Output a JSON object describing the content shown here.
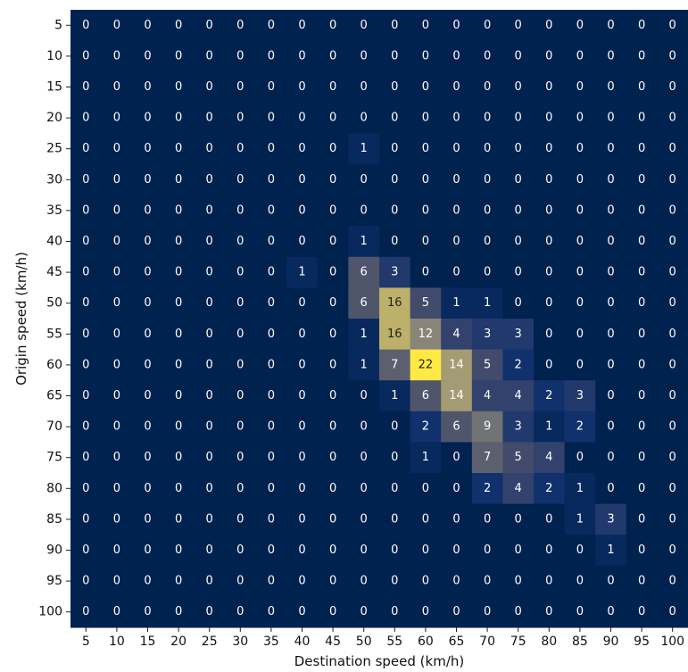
{
  "chart_data": {
    "type": "heatmap",
    "title": "",
    "xlabel": "Destination speed (km/h)",
    "ylabel": "Origin speed (km/h)",
    "x_categories": [
      "5",
      "10",
      "15",
      "20",
      "25",
      "30",
      "35",
      "40",
      "45",
      "50",
      "55",
      "60",
      "65",
      "70",
      "75",
      "80",
      "85",
      "90",
      "95",
      "100"
    ],
    "y_categories": [
      "5",
      "10",
      "15",
      "20",
      "25",
      "30",
      "35",
      "40",
      "45",
      "50",
      "55",
      "60",
      "65",
      "70",
      "75",
      "80",
      "85",
      "90",
      "95",
      "100"
    ],
    "values": [
      [
        0,
        0,
        0,
        0,
        0,
        0,
        0,
        0,
        0,
        0,
        0,
        0,
        0,
        0,
        0,
        0,
        0,
        0,
        0,
        0
      ],
      [
        0,
        0,
        0,
        0,
        0,
        0,
        0,
        0,
        0,
        0,
        0,
        0,
        0,
        0,
        0,
        0,
        0,
        0,
        0,
        0
      ],
      [
        0,
        0,
        0,
        0,
        0,
        0,
        0,
        0,
        0,
        0,
        0,
        0,
        0,
        0,
        0,
        0,
        0,
        0,
        0,
        0
      ],
      [
        0,
        0,
        0,
        0,
        0,
        0,
        0,
        0,
        0,
        0,
        0,
        0,
        0,
        0,
        0,
        0,
        0,
        0,
        0,
        0
      ],
      [
        0,
        0,
        0,
        0,
        0,
        0,
        0,
        0,
        0,
        1,
        0,
        0,
        0,
        0,
        0,
        0,
        0,
        0,
        0,
        0
      ],
      [
        0,
        0,
        0,
        0,
        0,
        0,
        0,
        0,
        0,
        0,
        0,
        0,
        0,
        0,
        0,
        0,
        0,
        0,
        0,
        0
      ],
      [
        0,
        0,
        0,
        0,
        0,
        0,
        0,
        0,
        0,
        0,
        0,
        0,
        0,
        0,
        0,
        0,
        0,
        0,
        0,
        0
      ],
      [
        0,
        0,
        0,
        0,
        0,
        0,
        0,
        0,
        0,
        1,
        0,
        0,
        0,
        0,
        0,
        0,
        0,
        0,
        0,
        0
      ],
      [
        0,
        0,
        0,
        0,
        0,
        0,
        0,
        1,
        0,
        6,
        3,
        0,
        0,
        0,
        0,
        0,
        0,
        0,
        0,
        0
      ],
      [
        0,
        0,
        0,
        0,
        0,
        0,
        0,
        0,
        0,
        6,
        16,
        5,
        1,
        1,
        0,
        0,
        0,
        0,
        0,
        0
      ],
      [
        0,
        0,
        0,
        0,
        0,
        0,
        0,
        0,
        0,
        1,
        16,
        12,
        4,
        3,
        3,
        0,
        0,
        0,
        0,
        0
      ],
      [
        0,
        0,
        0,
        0,
        0,
        0,
        0,
        0,
        0,
        1,
        7,
        22,
        14,
        5,
        2,
        0,
        0,
        0,
        0,
        0
      ],
      [
        0,
        0,
        0,
        0,
        0,
        0,
        0,
        0,
        0,
        0,
        1,
        6,
        14,
        4,
        4,
        2,
        3,
        0,
        0,
        0
      ],
      [
        0,
        0,
        0,
        0,
        0,
        0,
        0,
        0,
        0,
        0,
        0,
        2,
        6,
        9,
        3,
        1,
        2,
        0,
        0,
        0
      ],
      [
        0,
        0,
        0,
        0,
        0,
        0,
        0,
        0,
        0,
        0,
        0,
        1,
        0,
        7,
        5,
        4,
        0,
        0,
        0,
        0
      ],
      [
        0,
        0,
        0,
        0,
        0,
        0,
        0,
        0,
        0,
        0,
        0,
        0,
        0,
        2,
        4,
        2,
        1,
        0,
        0,
        0
      ],
      [
        0,
        0,
        0,
        0,
        0,
        0,
        0,
        0,
        0,
        0,
        0,
        0,
        0,
        0,
        0,
        0,
        1,
        3,
        0,
        0
      ],
      [
        0,
        0,
        0,
        0,
        0,
        0,
        0,
        0,
        0,
        0,
        0,
        0,
        0,
        0,
        0,
        0,
        0,
        1,
        0,
        0
      ],
      [
        0,
        0,
        0,
        0,
        0,
        0,
        0,
        0,
        0,
        0,
        0,
        0,
        0,
        0,
        0,
        0,
        0,
        0,
        0,
        0
      ],
      [
        0,
        0,
        0,
        0,
        0,
        0,
        0,
        0,
        0,
        0,
        0,
        0,
        0,
        0,
        0,
        0,
        0,
        0,
        0,
        0
      ]
    ],
    "value_range": [
      0,
      22
    ],
    "colormap": "cividis",
    "annotations": "cell values shown in each cell",
    "grid": false,
    "legend": "none"
  }
}
